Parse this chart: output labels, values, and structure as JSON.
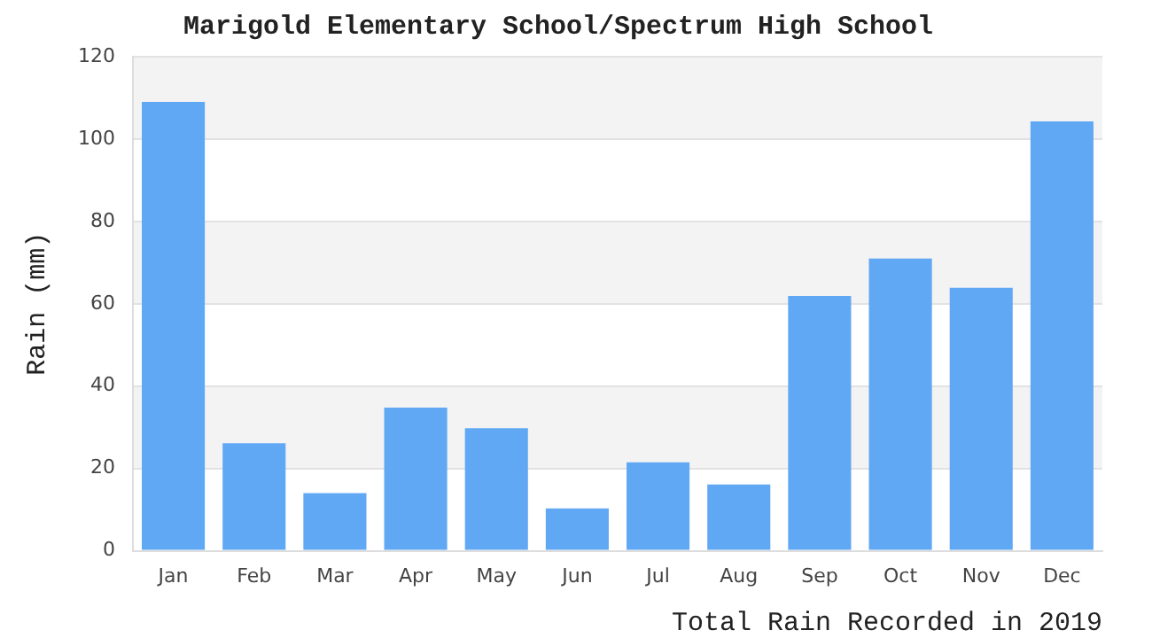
{
  "chart_data": {
    "type": "bar",
    "title": "Marigold Elementary School/Spectrum High School",
    "ylabel": "Rain (mm)",
    "categories": [
      "Jan",
      "Feb",
      "Mar",
      "Apr",
      "May",
      "Jun",
      "Jul",
      "Aug",
      "Sep",
      "Oct",
      "Nov",
      "Dec"
    ],
    "values": [
      109,
      26.1,
      14,
      34.8,
      29.8,
      10.3,
      21.5,
      16.1,
      61.9,
      71,
      63.9,
      104.3
    ],
    "color": "#60a8f4",
    "ylim": [
      0,
      120
    ],
    "yticks": [
      0,
      20,
      40,
      60,
      80,
      100,
      120
    ],
    "grid": "y",
    "legend": false,
    "annotations": [
      "Total Rain Recorded in 2019"
    ]
  }
}
